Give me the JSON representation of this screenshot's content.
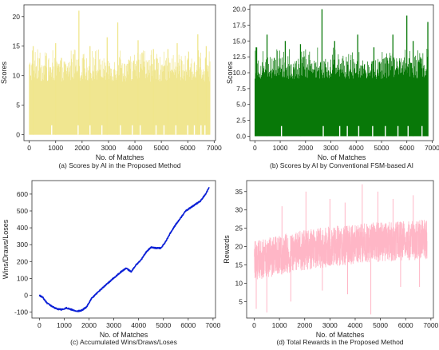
{
  "figure_colors": {
    "axis": "#333333",
    "background": "#ffffff"
  },
  "chart_data": [
    {
      "id": "a",
      "type": "bar",
      "title": "",
      "caption": "(a) Scores by AI in the Proposed Method",
      "xlabel": "No. of Matches",
      "ylabel": "Scores",
      "xlim": [
        -200,
        7050
      ],
      "ylim": [
        -1,
        22
      ],
      "xticks": [
        0,
        1000,
        2000,
        3000,
        4000,
        5000,
        6000,
        7000
      ],
      "yticks": [
        0,
        5,
        10,
        15,
        20
      ],
      "color": "#f0e68c",
      "n": 6850,
      "typical_range": [
        9,
        13
      ],
      "floor": 0,
      "peaks": [
        {
          "x": 1880,
          "y": 21
        },
        {
          "x": 3350,
          "y": 19
        },
        {
          "x": 6380,
          "y": 17
        },
        {
          "x": 2950,
          "y": 16.5
        },
        {
          "x": 4120,
          "y": 16
        },
        {
          "x": 1000,
          "y": 15.5
        },
        {
          "x": 5600,
          "y": 15.5
        },
        {
          "x": 150,
          "y": 15
        },
        {
          "x": 6700,
          "y": 15
        },
        {
          "x": 2300,
          "y": 15
        },
        {
          "x": 4700,
          "y": 14.5
        },
        {
          "x": 5250,
          "y": 14.5
        }
      ],
      "dips": [
        850,
        1850,
        2300,
        2750,
        3450,
        3900,
        4200,
        4800,
        5100,
        5550,
        6000,
        6250,
        6500,
        6650
      ]
    },
    {
      "id": "b",
      "type": "bar",
      "title": "",
      "caption": "(b) Scores by AI by Conventional  FSM-based  AI",
      "xlabel": "No. of Matches",
      "ylabel": "Scores",
      "xlim": [
        -200,
        7050
      ],
      "ylim": [
        -0.7,
        20.7
      ],
      "xticks": [
        0,
        1000,
        2000,
        3000,
        4000,
        5000,
        6000,
        7000
      ],
      "yticks": [
        0.0,
        2.5,
        5.0,
        7.5,
        10.0,
        12.5,
        15.0,
        17.5,
        20.0
      ],
      "color": "#087808",
      "n": 6850,
      "typical_range": [
        9,
        12.5
      ],
      "floor": 0,
      "peaks": [
        {
          "x": 2650,
          "y": 20
        },
        {
          "x": 6000,
          "y": 19
        },
        {
          "x": 6830,
          "y": 18
        },
        {
          "x": 480,
          "y": 16
        },
        {
          "x": 4060,
          "y": 16
        },
        {
          "x": 5450,
          "y": 16
        },
        {
          "x": 1200,
          "y": 15
        },
        {
          "x": 3150,
          "y": 15
        },
        {
          "x": 6250,
          "y": 15
        },
        {
          "x": 1800,
          "y": 14.5
        },
        {
          "x": 50,
          "y": 14
        },
        {
          "x": 4700,
          "y": 14
        }
      ],
      "dips": [
        1050,
        2700,
        3350,
        3650,
        4100,
        4650,
        5150,
        5650,
        6050,
        6600
      ]
    },
    {
      "id": "c",
      "type": "line",
      "title": "",
      "caption": "(c) Accumulated Wins/Draws/Loses",
      "xlabel": "No. of Matches",
      "ylabel": "Wins/Draws/Loses",
      "xlim": [
        -300,
        7100
      ],
      "ylim": [
        -135,
        680
      ],
      "xticks": [
        0,
        1000,
        2000,
        3000,
        4000,
        5000,
        6000,
        7000
      ],
      "yticks": [
        -100,
        0,
        100,
        200,
        300,
        400,
        500,
        600
      ],
      "color": "#0a1fd6",
      "points": [
        [
          0,
          0
        ],
        [
          150,
          -15
        ],
        [
          300,
          -45
        ],
        [
          500,
          -65
        ],
        [
          700,
          -80
        ],
        [
          900,
          -85
        ],
        [
          1100,
          -75
        ],
        [
          1300,
          -85
        ],
        [
          1500,
          -95
        ],
        [
          1700,
          -90
        ],
        [
          1900,
          -70
        ],
        [
          2100,
          -20
        ],
        [
          2300,
          10
        ],
        [
          2600,
          50
        ],
        [
          2900,
          90
        ],
        [
          3100,
          115
        ],
        [
          3300,
          140
        ],
        [
          3500,
          160
        ],
        [
          3700,
          140
        ],
        [
          3900,
          180
        ],
        [
          4100,
          210
        ],
        [
          4300,
          255
        ],
        [
          4500,
          285
        ],
        [
          4700,
          280
        ],
        [
          4900,
          280
        ],
        [
          5100,
          320
        ],
        [
          5300,
          375
        ],
        [
          5500,
          420
        ],
        [
          5700,
          460
        ],
        [
          5900,
          500
        ],
        [
          6100,
          520
        ],
        [
          6300,
          540
        ],
        [
          6500,
          560
        ],
        [
          6700,
          600
        ],
        [
          6850,
          640
        ]
      ],
      "noise": 7
    },
    {
      "id": "d",
      "type": "line",
      "title": "",
      "caption": "(d) Total Rewards  in the Proposed  Method",
      "xlabel": "No. of Matches",
      "ylabel": "Rewards",
      "xlim": [
        -300,
        7100
      ],
      "ylim": [
        0.5,
        38
      ],
      "xticks": [
        0,
        1000,
        2000,
        3000,
        4000,
        5000,
        6000,
        7000
      ],
      "yticks": [
        5,
        10,
        15,
        20,
        25,
        30,
        35
      ],
      "color": "#ffb6c6",
      "n": 6850,
      "trend": [
        [
          0,
          16
        ],
        [
          1500,
          18.5
        ],
        [
          3000,
          20
        ],
        [
          4500,
          21
        ],
        [
          6000,
          21.5
        ],
        [
          6850,
          22
        ]
      ],
      "spread": 5.5,
      "peaks": [
        {
          "x": 2050,
          "y": 35
        },
        {
          "x": 4280,
          "y": 37
        },
        {
          "x": 3000,
          "y": 33
        },
        {
          "x": 4900,
          "y": 35
        },
        {
          "x": 6300,
          "y": 34
        },
        {
          "x": 5500,
          "y": 33
        },
        {
          "x": 1100,
          "y": 31
        },
        {
          "x": 3600,
          "y": 32
        }
      ],
      "lows": [
        {
          "x": 80,
          "y": 3
        },
        {
          "x": 500,
          "y": 2
        },
        {
          "x": 1450,
          "y": 5
        },
        {
          "x": 2700,
          "y": 8
        },
        {
          "x": 3700,
          "y": 7
        },
        {
          "x": 4620,
          "y": 1.5
        },
        {
          "x": 5800,
          "y": 9
        },
        {
          "x": 6550,
          "y": 9
        }
      ]
    }
  ]
}
